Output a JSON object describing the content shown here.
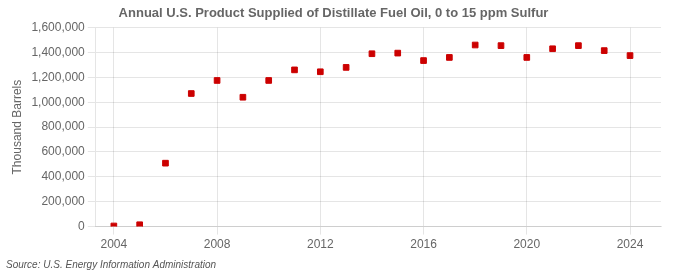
{
  "chart_data": {
    "type": "scatter",
    "title": "Annual U.S. Product Supplied of Distillate Fuel Oil, 0 to 15 ppm Sulfur",
    "ylabel": "Thousand Barrels",
    "annotation": "Source: U.S. Energy Information Administration",
    "x": [
      2004,
      2005,
      2006,
      2007,
      2008,
      2009,
      2010,
      2011,
      2012,
      2013,
      2014,
      2015,
      2016,
      2017,
      2018,
      2019,
      2020,
      2021,
      2022,
      2023,
      2024
    ],
    "values": [
      5000,
      15000,
      510000,
      1070000,
      1175000,
      1040000,
      1175000,
      1260000,
      1245000,
      1280000,
      1390000,
      1395000,
      1335000,
      1360000,
      1460000,
      1455000,
      1360000,
      1430000,
      1455000,
      1415000,
      1375000
    ],
    "color": "#cc0000",
    "marker": "square",
    "xlim": [
      2003.3,
      2025.2
    ],
    "xticks": [
      2004,
      2008,
      2012,
      2016,
      2020,
      2024
    ],
    "ylim": [
      0,
      1600000
    ],
    "yticks": [
      0,
      {
        "value": 200000,
        "label": "200,000"
      },
      {
        "value": 400000,
        "label": "400,000"
      },
      {
        "value": 600000,
        "label": "600,000"
      },
      {
        "value": 800000,
        "label": "800,000"
      },
      {
        "value": 1000000,
        "label": "1,000,000"
      },
      {
        "value": 1200000,
        "label": "1,200,000"
      },
      {
        "value": 1400000,
        "label": "1,400,000"
      },
      {
        "value": 1600000,
        "label": "1,600,000"
      }
    ],
    "grid": true
  }
}
